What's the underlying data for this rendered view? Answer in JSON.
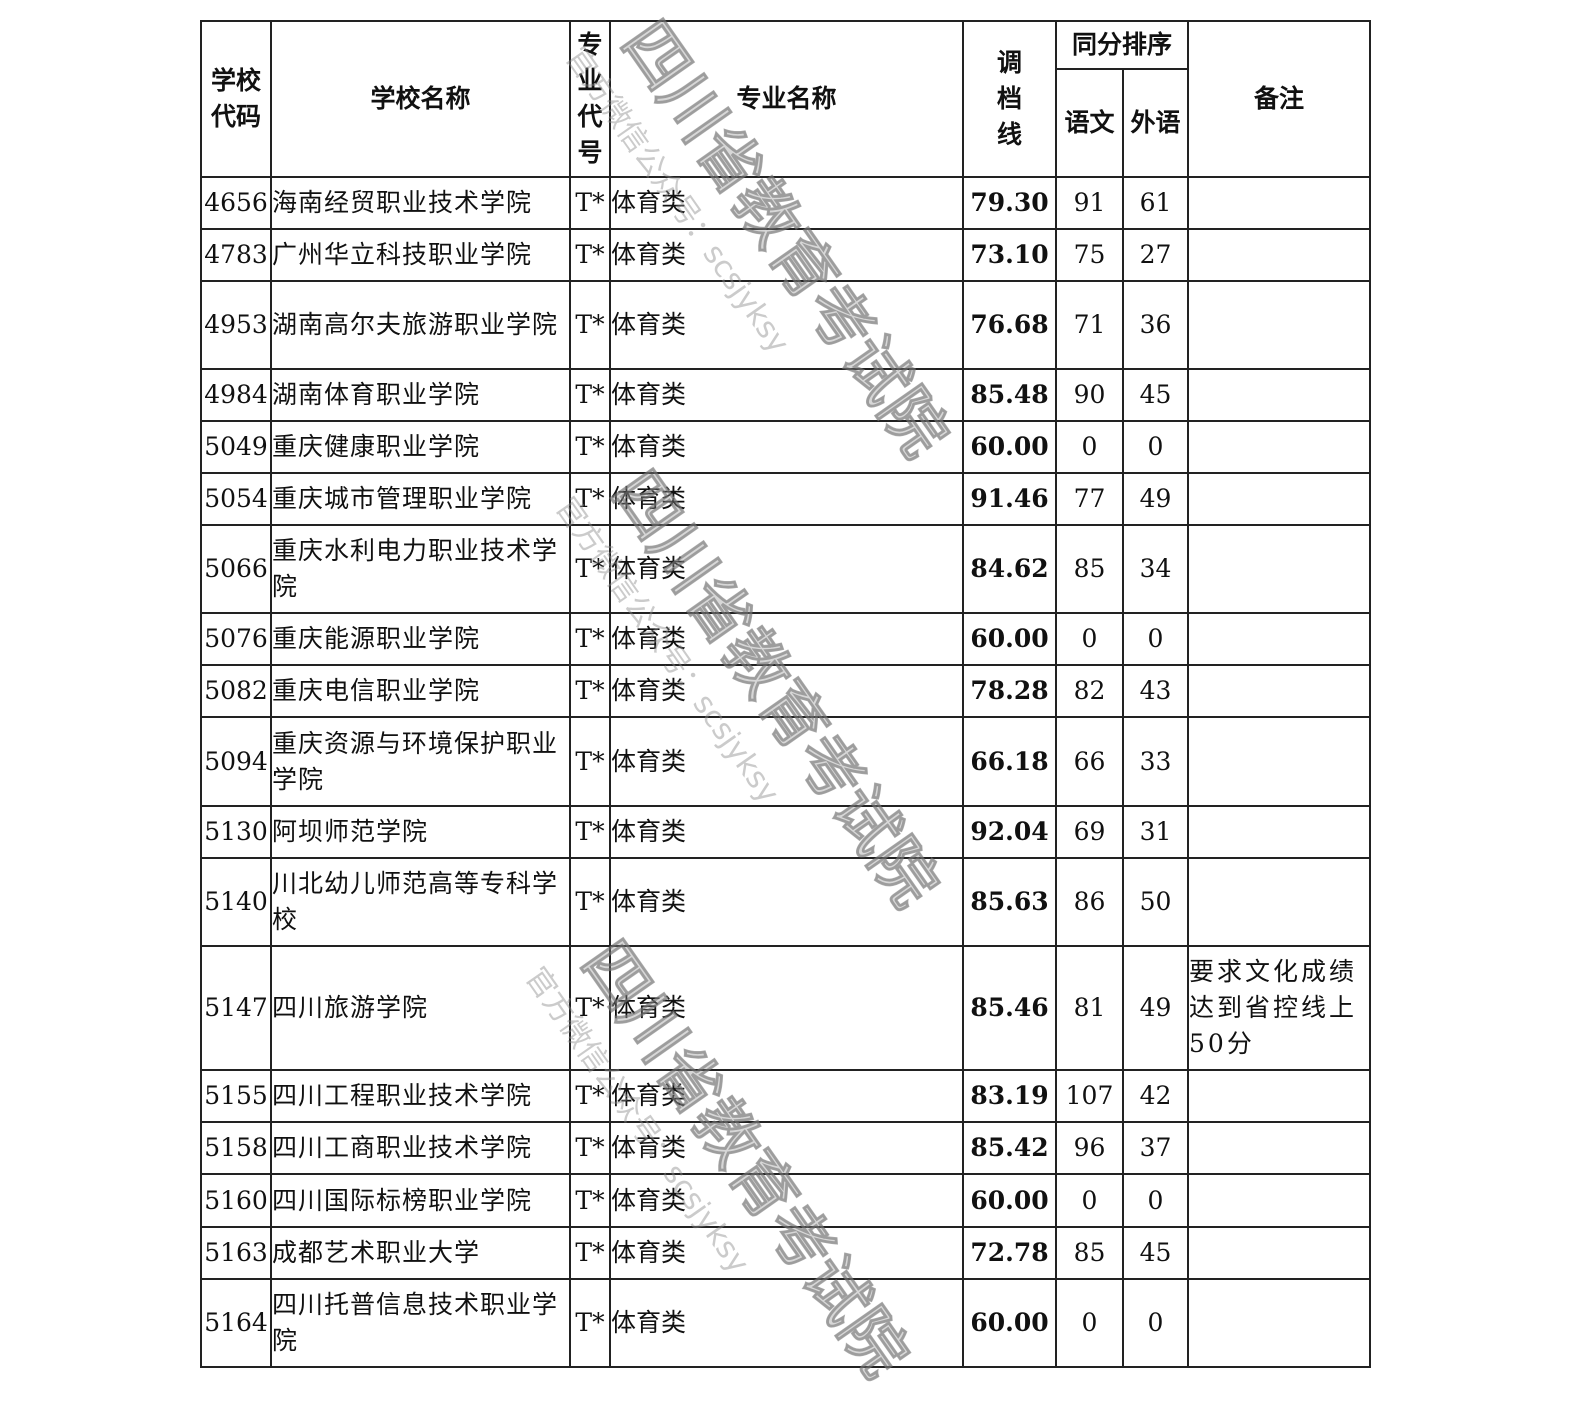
{
  "header": {
    "school_code": "学校代码",
    "school_name": "学校名称",
    "major_code": "专业代号",
    "major_name": "专业名称",
    "cutoff": "调档线",
    "tie_sort": "同分排序",
    "chinese": "语文",
    "foreign": "外语",
    "note": "备注"
  },
  "rows": [
    {
      "code": "4656",
      "name": "海南经贸职业技术学院",
      "mcode": "T*",
      "major": "体育类",
      "line": "79.30",
      "chinese": "91",
      "foreign": "61",
      "note": ""
    },
    {
      "code": "4783",
      "name": "广州华立科技职业学院",
      "mcode": "T*",
      "major": "体育类",
      "line": "73.10",
      "chinese": "75",
      "foreign": "27",
      "note": ""
    },
    {
      "code": "4953",
      "name": "湖南高尔夫旅游职业学院",
      "mcode": "T*",
      "major": "体育类",
      "line": "76.68",
      "chinese": "71",
      "foreign": "36",
      "note": ""
    },
    {
      "code": "4984",
      "name": "湖南体育职业学院",
      "mcode": "T*",
      "major": "体育类",
      "line": "85.48",
      "chinese": "90",
      "foreign": "45",
      "note": ""
    },
    {
      "code": "5049",
      "name": "重庆健康职业学院",
      "mcode": "T*",
      "major": "体育类",
      "line": "60.00",
      "chinese": "0",
      "foreign": "0",
      "note": ""
    },
    {
      "code": "5054",
      "name": "重庆城市管理职业学院",
      "mcode": "T*",
      "major": "体育类",
      "line": "91.46",
      "chinese": "77",
      "foreign": "49",
      "note": ""
    },
    {
      "code": "5066",
      "name": "重庆水利电力职业技术学院",
      "mcode": "T*",
      "major": "体育类",
      "line": "84.62",
      "chinese": "85",
      "foreign": "34",
      "note": ""
    },
    {
      "code": "5076",
      "name": "重庆能源职业学院",
      "mcode": "T*",
      "major": "体育类",
      "line": "60.00",
      "chinese": "0",
      "foreign": "0",
      "note": ""
    },
    {
      "code": "5082",
      "name": "重庆电信职业学院",
      "mcode": "T*",
      "major": "体育类",
      "line": "78.28",
      "chinese": "82",
      "foreign": "43",
      "note": ""
    },
    {
      "code": "5094",
      "name": "重庆资源与环境保护职业学院",
      "mcode": "T*",
      "major": "体育类",
      "line": "66.18",
      "chinese": "66",
      "foreign": "33",
      "note": ""
    },
    {
      "code": "5130",
      "name": "阿坝师范学院",
      "mcode": "T*",
      "major": "体育类",
      "line": "92.04",
      "chinese": "69",
      "foreign": "31",
      "note": ""
    },
    {
      "code": "5140",
      "name": "川北幼儿师范高等专科学校",
      "mcode": "T*",
      "major": "体育类",
      "line": "85.63",
      "chinese": "86",
      "foreign": "50",
      "note": ""
    },
    {
      "code": "5147",
      "name": "四川旅游学院",
      "mcode": "T*",
      "major": "体育类",
      "line": "85.46",
      "chinese": "81",
      "foreign": "49",
      "note": "要求文化成绩达到省控线上50分"
    },
    {
      "code": "5155",
      "name": "四川工程职业技术学院",
      "mcode": "T*",
      "major": "体育类",
      "line": "83.19",
      "chinese": "107",
      "foreign": "42",
      "note": ""
    },
    {
      "code": "5158",
      "name": "四川工商职业技术学院",
      "mcode": "T*",
      "major": "体育类",
      "line": "85.42",
      "chinese": "96",
      "foreign": "37",
      "note": ""
    },
    {
      "code": "5160",
      "name": "四川国际标榜职业学院",
      "mcode": "T*",
      "major": "体育类",
      "line": "60.00",
      "chinese": "0",
      "foreign": "0",
      "note": ""
    },
    {
      "code": "5163",
      "name": "成都艺术职业大学",
      "mcode": "T*",
      "major": "体育类",
      "line": "72.78",
      "chinese": "85",
      "foreign": "45",
      "note": ""
    },
    {
      "code": "5164",
      "name": "四川托普信息技术职业学院",
      "mcode": "T*",
      "major": "体育类",
      "line": "60.00",
      "chinese": "0",
      "foreign": "0",
      "note": ""
    }
  ],
  "watermark": {
    "title": "四川省教育考试院",
    "subtitle": "官方微信公众号：scsjyksy"
  }
}
